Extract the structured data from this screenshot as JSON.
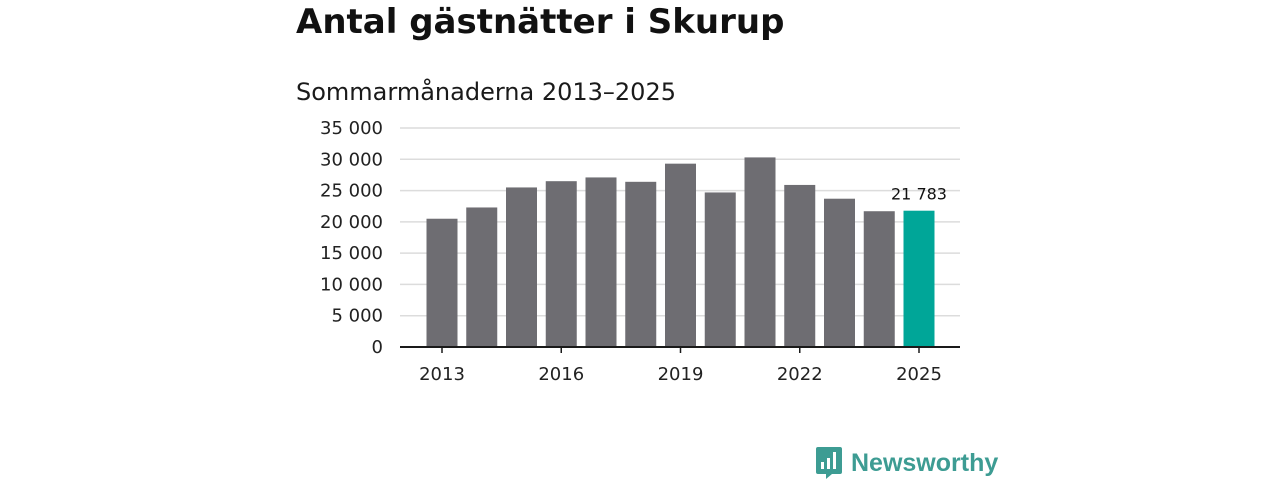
{
  "title": "Antal gästnätter i Skurup",
  "subtitle": "Sommarmånaderna 2013–2025",
  "brand": {
    "name": "Newsworthy",
    "icon": "bar-chart-speech-bubble-icon",
    "color": "#3d9c93"
  },
  "colors": {
    "bar": "#6e6d72",
    "highlight": "#00a698",
    "grid": "#dcdcdc",
    "axis": "#1a1a1a"
  },
  "chart_data": {
    "type": "bar",
    "title": "Sommarmånaderna 2013–2025",
    "xlabel": "",
    "ylabel": "",
    "categories": [
      "2013",
      "2014",
      "2015",
      "2016",
      "2017",
      "2018",
      "2019",
      "2020",
      "2021",
      "2022",
      "2023",
      "2024",
      "2025"
    ],
    "values": [
      20500,
      22300,
      25500,
      26500,
      27100,
      26400,
      29300,
      24700,
      30300,
      25900,
      23700,
      21700,
      21783
    ],
    "highlight_category": "2025",
    "data_labels": [
      {
        "category": "2025",
        "text": "21 783"
      }
    ],
    "x_tick_labels": [
      "2013",
      "2016",
      "2019",
      "2022",
      "2025"
    ],
    "y_ticks": [
      0,
      5000,
      10000,
      15000,
      20000,
      25000,
      30000,
      35000
    ],
    "y_tick_labels": [
      "0",
      "5 000",
      "10 000",
      "15 000",
      "20 000",
      "25 000",
      "30 000",
      "35 000"
    ],
    "ylim": [
      0,
      35000
    ],
    "grid": true,
    "legend": "none"
  }
}
